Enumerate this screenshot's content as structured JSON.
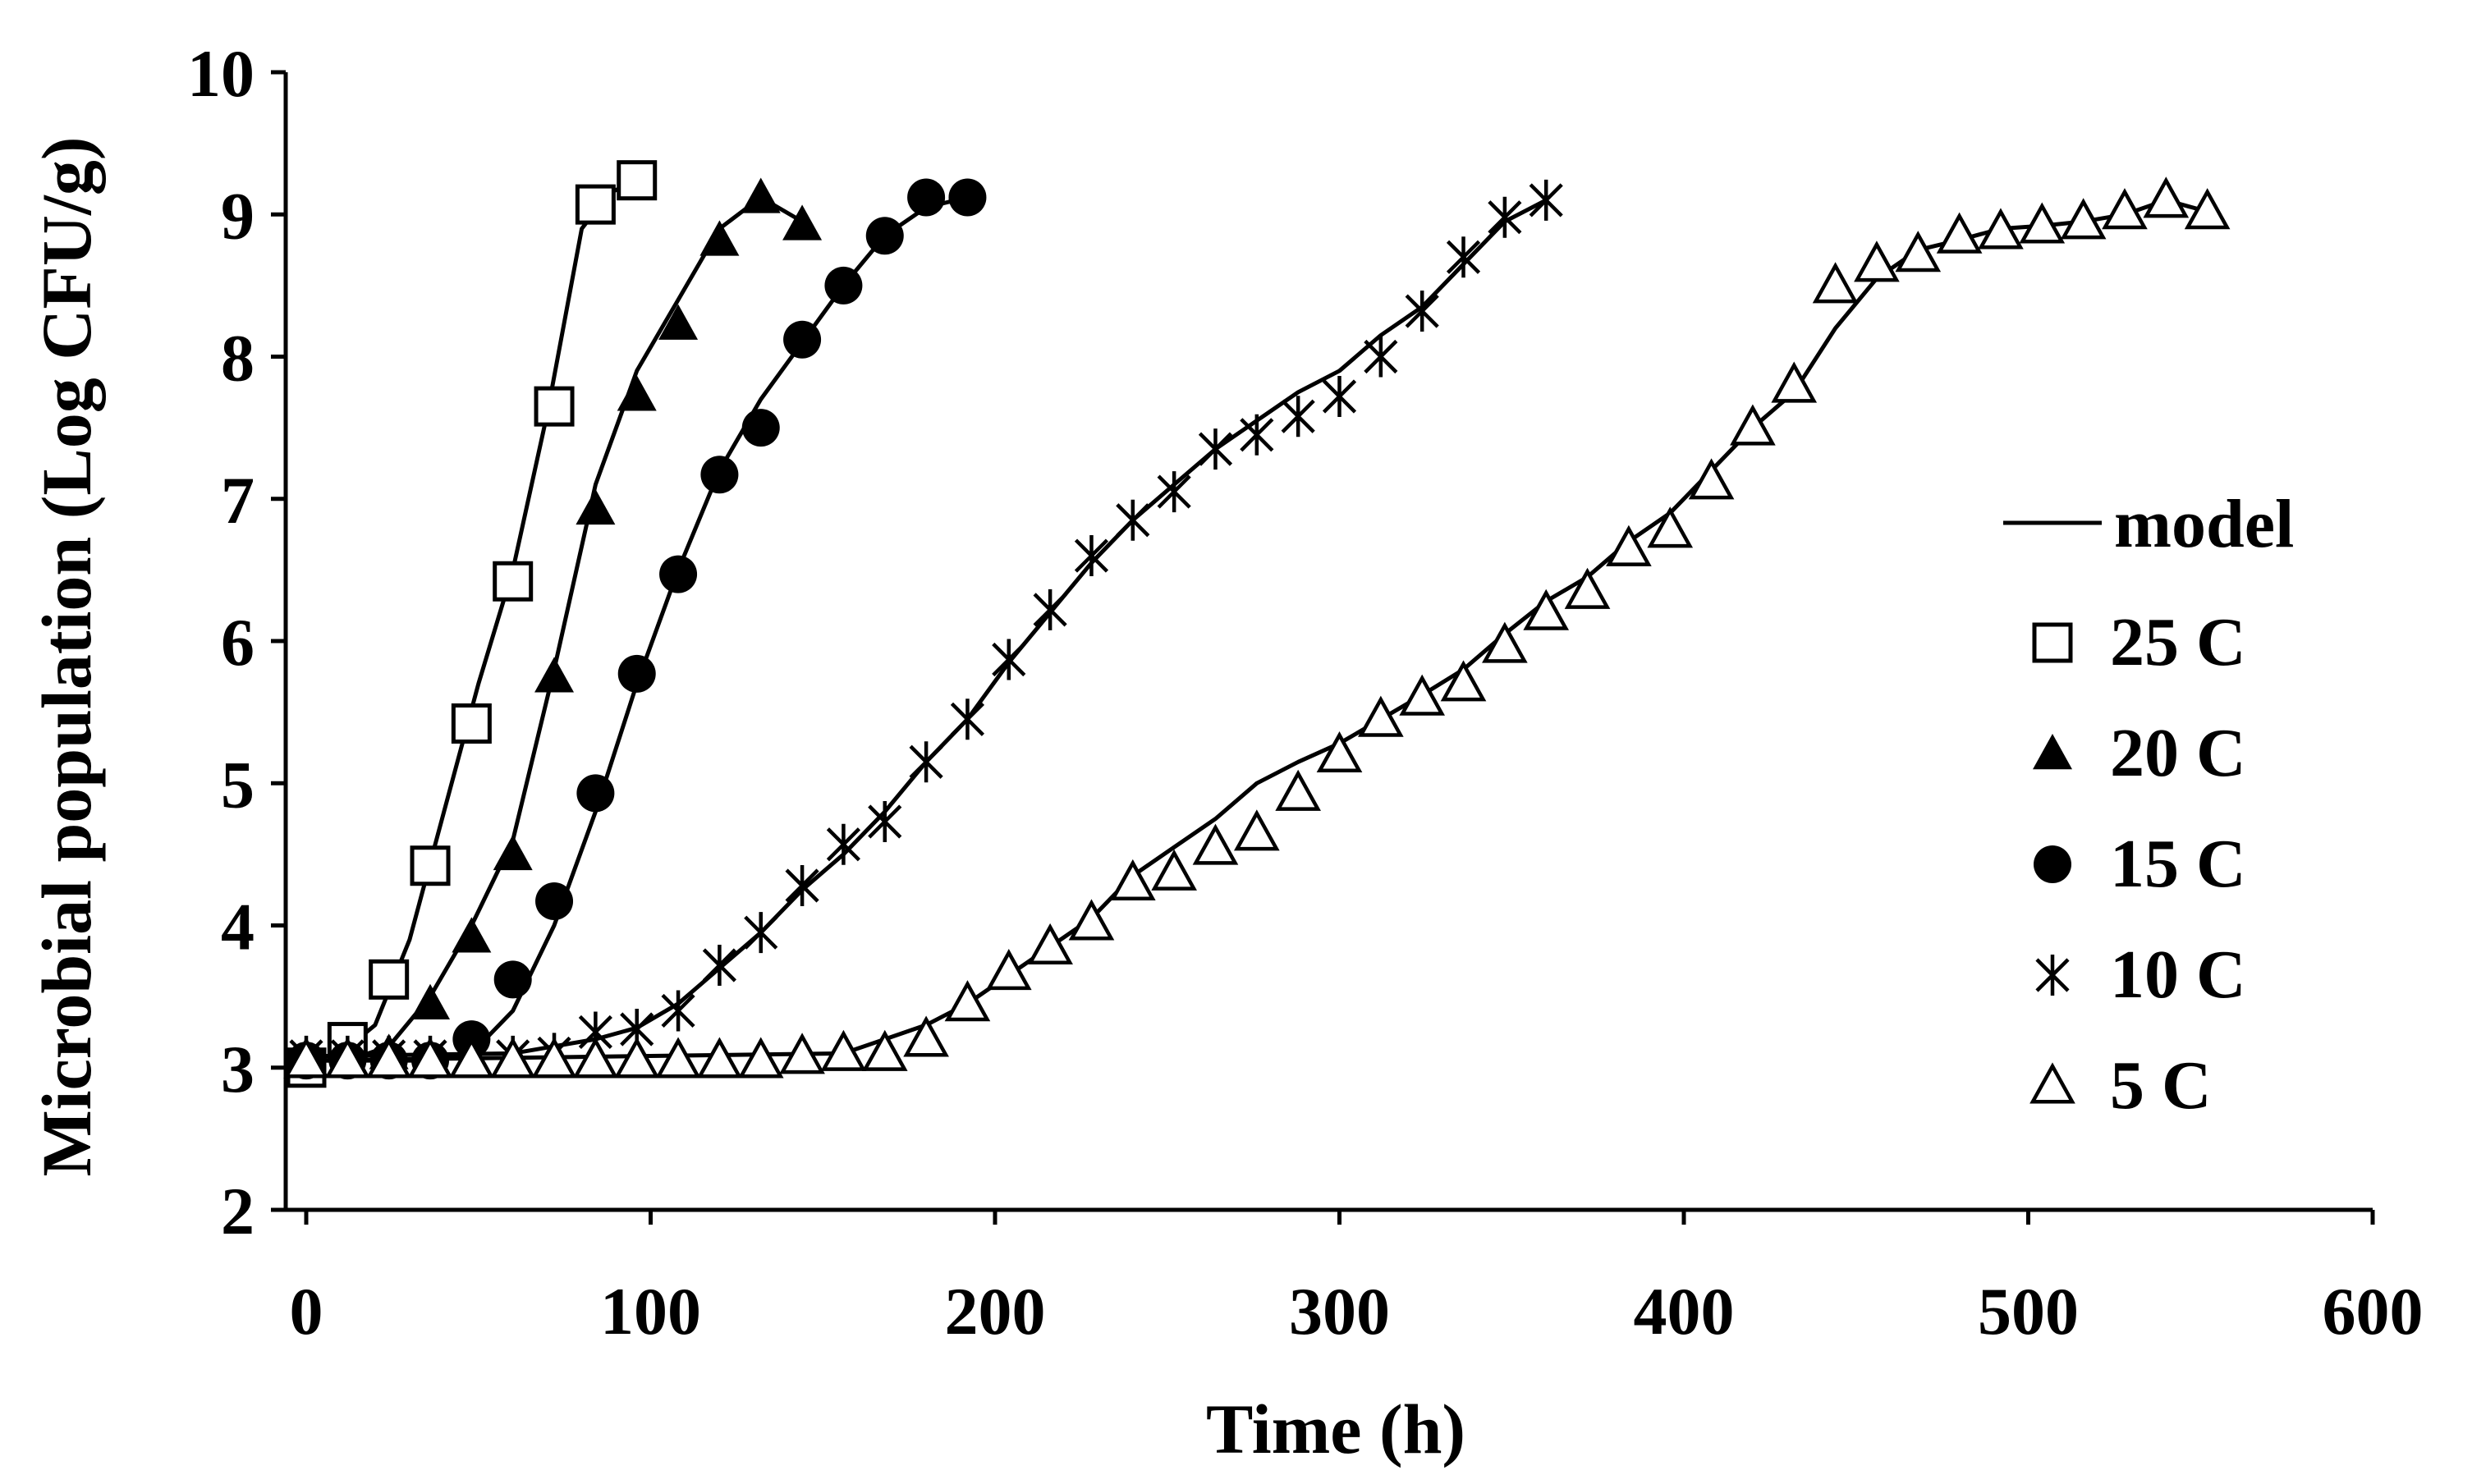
{
  "colors": {
    "ink": "#000000",
    "background": "#ffffff"
  },
  "chart_data": {
    "type": "scatter",
    "title": "",
    "xlabel": "Time (h)",
    "ylabel": "Microbial population (Log CFU/g)",
    "xlim": [
      0,
      600
    ],
    "ylim": [
      2,
      10
    ],
    "xticks": [
      0,
      100,
      200,
      300,
      400,
      500,
      600
    ],
    "yticks": [
      2,
      3,
      4,
      5,
      6,
      7,
      8,
      9,
      10
    ],
    "grid": false,
    "legend_position": "right",
    "model_label": "model",
    "series": [
      {
        "name": "25 C",
        "marker": "open-square",
        "x": [
          0,
          12,
          24,
          36,
          48,
          60,
          72,
          84,
          96
        ],
        "y": [
          3.0,
          3.18,
          3.62,
          4.42,
          5.42,
          6.42,
          7.65,
          9.07,
          9.24
        ],
        "model_x": [
          0,
          10,
          20,
          30,
          40,
          50,
          60,
          70,
          80,
          88,
          96
        ],
        "model_y": [
          3.05,
          3.1,
          3.3,
          3.9,
          4.8,
          5.7,
          6.5,
          7.6,
          8.9,
          9.15,
          9.24
        ]
      },
      {
        "name": "20 C",
        "marker": "filled-triangle",
        "x": [
          0,
          12,
          24,
          36,
          48,
          60,
          72,
          84,
          96,
          108,
          120,
          132,
          144
        ],
        "y": [
          3.05,
          3.05,
          3.1,
          3.45,
          3.92,
          4.5,
          5.75,
          6.93,
          7.73,
          8.23,
          8.82,
          9.12,
          8.93
        ],
        "model_x": [
          0,
          12,
          24,
          36,
          48,
          60,
          72,
          84,
          96,
          108,
          120,
          132,
          144
        ],
        "model_y": [
          3.05,
          3.05,
          3.15,
          3.5,
          4.0,
          4.6,
          5.8,
          7.1,
          7.9,
          8.4,
          8.9,
          9.12,
          8.95
        ]
      },
      {
        "name": "15 C",
        "marker": "filled-circle",
        "x": [
          0,
          12,
          24,
          36,
          48,
          60,
          72,
          84,
          96,
          108,
          120,
          132,
          144,
          156,
          168,
          180,
          192
        ],
        "y": [
          3.05,
          3.05,
          3.05,
          3.05,
          3.2,
          3.62,
          4.17,
          4.93,
          5.77,
          6.47,
          7.17,
          7.5,
          8.12,
          8.5,
          8.85,
          9.12,
          9.12
        ],
        "model_x": [
          0,
          12,
          24,
          36,
          48,
          60,
          72,
          84,
          96,
          108,
          120,
          132,
          144,
          156,
          168,
          180,
          192
        ],
        "model_y": [
          3.05,
          3.05,
          3.05,
          3.05,
          3.1,
          3.4,
          4.0,
          4.8,
          5.7,
          6.5,
          7.2,
          7.7,
          8.1,
          8.5,
          8.85,
          9.05,
          9.12
        ]
      },
      {
        "name": "10 C",
        "marker": "star",
        "x": [
          0,
          12,
          24,
          36,
          48,
          60,
          72,
          84,
          96,
          108,
          120,
          132,
          144,
          156,
          168,
          180,
          192,
          204,
          216,
          228,
          240,
          252,
          264,
          276,
          288,
          300,
          312,
          324,
          336,
          348,
          360
        ],
        "y": [
          3.08,
          3.08,
          3.08,
          3.08,
          3.08,
          3.08,
          3.1,
          3.25,
          3.27,
          3.4,
          3.72,
          3.95,
          4.28,
          4.57,
          4.73,
          5.15,
          5.45,
          5.87,
          6.22,
          6.6,
          6.85,
          7.05,
          7.35,
          7.45,
          7.58,
          7.72,
          8.0,
          8.32,
          8.7,
          8.98,
          9.1
        ],
        "model_x": [
          0,
          60,
          84,
          96,
          108,
          120,
          132,
          144,
          156,
          168,
          180,
          192,
          204,
          216,
          228,
          240,
          252,
          264,
          276,
          288,
          300,
          312,
          324,
          336,
          348,
          360
        ],
        "model_y": [
          3.08,
          3.1,
          3.2,
          3.28,
          3.45,
          3.7,
          3.95,
          4.25,
          4.5,
          4.8,
          5.15,
          5.45,
          5.85,
          6.2,
          6.55,
          6.85,
          7.1,
          7.35,
          7.55,
          7.75,
          7.9,
          8.15,
          8.35,
          8.65,
          8.95,
          9.1
        ]
      },
      {
        "name": "5 C",
        "marker": "open-triangle",
        "x": [
          0,
          12,
          24,
          36,
          48,
          60,
          72,
          84,
          96,
          108,
          120,
          132,
          144,
          156,
          168,
          180,
          192,
          204,
          216,
          228,
          240,
          252,
          264,
          276,
          288,
          300,
          312,
          324,
          336,
          348,
          360,
          372,
          384,
          396,
          408,
          420,
          432,
          444,
          456,
          468,
          480,
          492,
          504,
          516,
          528,
          540,
          552
        ],
        "y": [
          3.05,
          3.05,
          3.05,
          3.05,
          3.05,
          3.05,
          3.05,
          3.05,
          3.05,
          3.05,
          3.05,
          3.05,
          3.08,
          3.1,
          3.1,
          3.2,
          3.45,
          3.67,
          3.85,
          4.02,
          4.3,
          4.37,
          4.55,
          4.65,
          4.93,
          5.2,
          5.45,
          5.6,
          5.7,
          5.97,
          6.2,
          6.35,
          6.65,
          6.78,
          7.12,
          7.5,
          7.8,
          8.5,
          8.65,
          8.72,
          8.85,
          8.88,
          8.92,
          8.95,
          9.02,
          9.1,
          9.02
        ],
        "model_x": [
          0,
          156,
          168,
          180,
          192,
          204,
          216,
          228,
          240,
          252,
          264,
          276,
          288,
          300,
          312,
          324,
          336,
          348,
          360,
          372,
          384,
          396,
          408,
          420,
          432,
          444,
          456,
          468,
          480,
          492,
          504,
          516,
          528,
          540,
          552
        ],
        "model_y": [
          3.05,
          3.1,
          3.2,
          3.3,
          3.45,
          3.65,
          3.85,
          4.05,
          4.35,
          4.55,
          4.75,
          5.0,
          5.15,
          5.28,
          5.45,
          5.62,
          5.8,
          6.05,
          6.28,
          6.45,
          6.7,
          6.9,
          7.2,
          7.5,
          7.75,
          8.2,
          8.55,
          8.75,
          8.82,
          8.9,
          8.92,
          8.95,
          9.0,
          9.1,
          9.02
        ]
      }
    ]
  }
}
